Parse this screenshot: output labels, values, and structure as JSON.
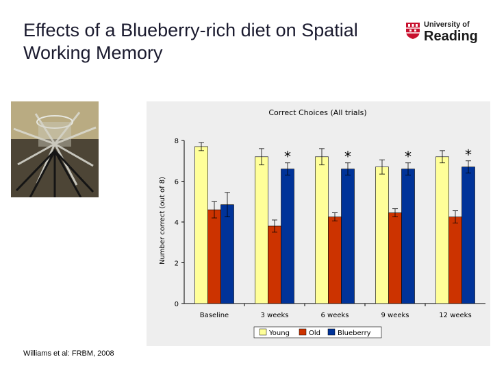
{
  "slide": {
    "title": "Effects of a Blueberry-rich diet on Spatial Working Memory",
    "citation": "Williams et al:  FRBM, 2008"
  },
  "logo": {
    "line1": "University of",
    "line2": "Reading"
  },
  "photo": {
    "icon": "radial-arm-maze-photo"
  },
  "chart_data": {
    "type": "bar",
    "title": "Correct Choices (All trials)",
    "xlabel": "",
    "ylabel": "Number correct (out of 8)",
    "ylim": [
      0,
      8
    ],
    "yticks": [
      0,
      2,
      4,
      6,
      8
    ],
    "grid": false,
    "legend_position": "bottom",
    "categories": [
      "Baseline",
      "3 weeks",
      "6 weeks",
      "9 weeks",
      "12 weeks"
    ],
    "series": [
      {
        "name": "Young",
        "color": "#ffff99",
        "values": [
          7.7,
          7.2,
          7.2,
          6.7,
          7.2
        ],
        "errors": [
          0.2,
          0.4,
          0.4,
          0.35,
          0.3
        ]
      },
      {
        "name": "Old",
        "color": "#cc3300",
        "values": [
          4.6,
          3.8,
          4.25,
          4.45,
          4.25
        ],
        "errors": [
          0.4,
          0.3,
          0.2,
          0.2,
          0.3
        ]
      },
      {
        "name": "Blueberry",
        "color": "#003399",
        "values": [
          4.85,
          6.6,
          6.6,
          6.6,
          6.7
        ],
        "errors": [
          0.6,
          0.3,
          0.3,
          0.3,
          0.3
        ]
      }
    ],
    "annotations": [
      {
        "text": "*",
        "category": "3 weeks",
        "series": "Blueberry"
      },
      {
        "text": "*",
        "category": "6 weeks",
        "series": "Blueberry"
      },
      {
        "text": "*",
        "category": "9 weeks",
        "series": "Blueberry"
      },
      {
        "text": "*",
        "category": "12 weeks",
        "series": "Blueberry"
      }
    ]
  }
}
